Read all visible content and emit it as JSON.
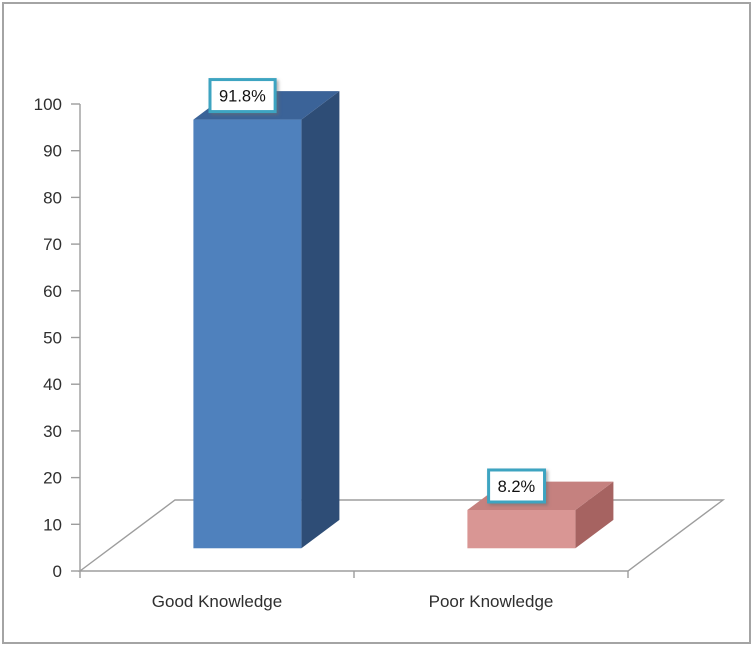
{
  "window": {
    "background": "#ffffff",
    "frame_border_color": "#a4a4a4"
  },
  "chart_data": {
    "type": "bar",
    "style": "3d-column",
    "title": "",
    "xlabel": "",
    "ylabel": "",
    "categories": [
      "Good Knowledge",
      "Poor Knowledge"
    ],
    "values": [
      91.8,
      8.2
    ],
    "data_labels": [
      "91.8%",
      "8.2%"
    ],
    "ylim": [
      0,
      100
    ],
    "ytick_interval": 10,
    "yticks": [
      0,
      10,
      20,
      30,
      40,
      50,
      60,
      70,
      80,
      90,
      100
    ],
    "grid": false,
    "legend_position": "none",
    "axis_color": "#9d9d9d",
    "tick_label_color": "#2f2f2f",
    "category_label_color": "#2f2f2f",
    "series": [
      {
        "name": "Good Knowledge",
        "value": 91.8,
        "label": "91.8%",
        "color_front": "#4f81bd",
        "color_top": "#3b6398",
        "color_side": "#2e4d76"
      },
      {
        "name": "Poor Knowledge",
        "value": 8.2,
        "label": "8.2%",
        "color_front": "#d99694",
        "color_top": "#c5817f",
        "color_side": "#a66361"
      }
    ],
    "data_label_box": {
      "fill": "#ffffff",
      "border_color": "#3da4c1",
      "text_color": "#111111"
    }
  }
}
